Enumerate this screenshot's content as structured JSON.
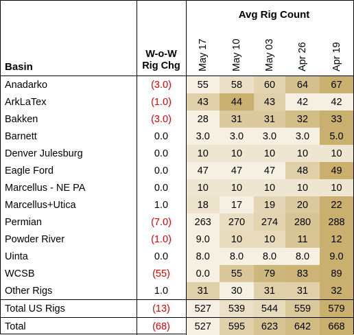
{
  "header": {
    "group_title": "Avg Rig Count",
    "basin_label": "Basin",
    "wow_label_line1": "W-o-W",
    "wow_label_line2": "Rig Chg",
    "weeks": [
      "May 17",
      "May 10",
      "May 03",
      "Apr 26",
      "Apr 19"
    ]
  },
  "colors": {
    "negative_text": "#e00000",
    "shade_light": "#f6f0e2",
    "shade_dark": "#c9b06f"
  },
  "rows": [
    {
      "basin": "Anadarko",
      "chg": "(3.0)",
      "negative": true,
      "values": [
        "55",
        "58",
        "60",
        "64",
        "67"
      ]
    },
    {
      "basin": "ArkLaTex",
      "chg": "(1.0)",
      "negative": true,
      "values": [
        "43",
        "44",
        "43",
        "42",
        "42"
      ]
    },
    {
      "basin": "Bakken",
      "chg": "(3.0)",
      "negative": true,
      "values": [
        "28",
        "31",
        "31",
        "32",
        "33"
      ]
    },
    {
      "basin": "Barnett",
      "chg": "0.0",
      "negative": false,
      "values": [
        "3.0",
        "3.0",
        "3.0",
        "3.0",
        "5.0"
      ]
    },
    {
      "basin": "Denver Julesburg",
      "chg": "0.0",
      "negative": false,
      "values": [
        "10",
        "10",
        "10",
        "10",
        "10"
      ]
    },
    {
      "basin": "Eagle Ford",
      "chg": "0.0",
      "negative": false,
      "values": [
        "47",
        "47",
        "47",
        "48",
        "49"
      ]
    },
    {
      "basin": "Marcellus - NE PA",
      "chg": "0.0",
      "negative": false,
      "values": [
        "10",
        "10",
        "10",
        "10",
        "10"
      ]
    },
    {
      "basin": "Marcellus+Utica",
      "chg": "1.0",
      "negative": false,
      "values": [
        "18",
        "17",
        "19",
        "20",
        "22"
      ]
    },
    {
      "basin": "Permian",
      "chg": "(7.0)",
      "negative": true,
      "values": [
        "263",
        "270",
        "274",
        "280",
        "288"
      ]
    },
    {
      "basin": "Powder River",
      "chg": "(1.0)",
      "negative": true,
      "values": [
        "9.0",
        "10",
        "10",
        "11",
        "12"
      ]
    },
    {
      "basin": "Uinta",
      "chg": "0.0",
      "negative": false,
      "values": [
        "8.0",
        "8.0",
        "8.0",
        "8.0",
        "9.0"
      ]
    },
    {
      "basin": "WCSB",
      "chg": "(55)",
      "negative": true,
      "values": [
        "0.0",
        "55",
        "79",
        "83",
        "89"
      ]
    },
    {
      "basin": "Other Rigs",
      "chg": "1.0",
      "negative": false,
      "values": [
        "31",
        "30",
        "31",
        "31",
        "32"
      ]
    },
    {
      "basin": "Total US Rigs",
      "chg": "(13)",
      "negative": true,
      "values": [
        "527",
        "539",
        "544",
        "559",
        "579"
      ],
      "separator": true
    },
    {
      "basin": "Total",
      "chg": "(68)",
      "negative": true,
      "values": [
        "527",
        "595",
        "623",
        "642",
        "668"
      ],
      "separator": true
    }
  ]
}
